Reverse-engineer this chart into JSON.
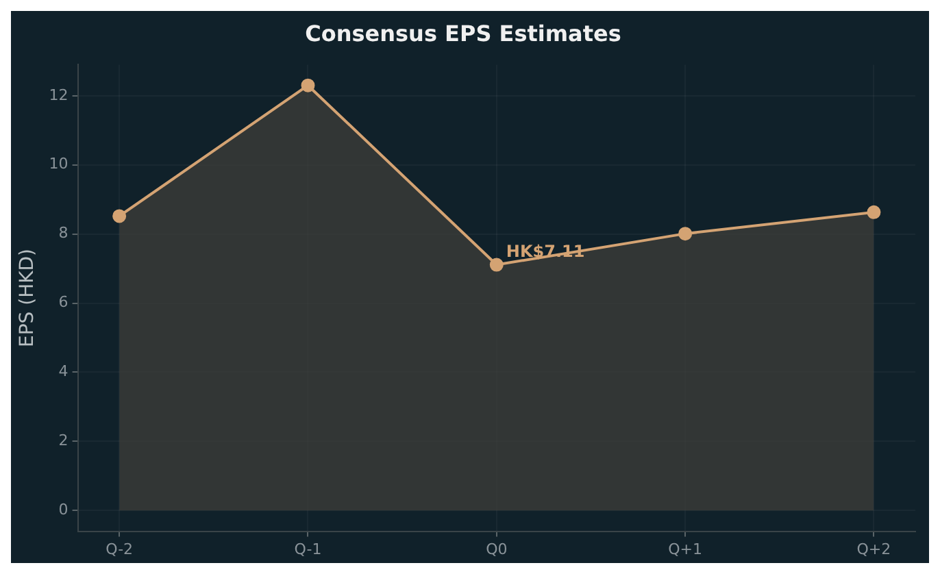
{
  "chart_data": {
    "type": "area",
    "title": "Consensus EPS Estimates",
    "ylabel": "EPS (HKD)",
    "categories": [
      "Q-2",
      "Q-1",
      "Q0",
      "Q+1",
      "Q+2"
    ],
    "series": [
      {
        "color": "#d4a373",
        "values": [
          8.52,
          12.3,
          7.11,
          8.01,
          8.63
        ]
      }
    ],
    "ylim": [
      -0.6,
      12.9
    ],
    "yticks": [
      0,
      2,
      4,
      6,
      8,
      10,
      12
    ],
    "grid": true,
    "marker": "circle",
    "line_style": "solid",
    "legend": false,
    "annotations": [
      {
        "text": "HK$7.11",
        "x": "Q0",
        "y": 7.11
      }
    ]
  }
}
